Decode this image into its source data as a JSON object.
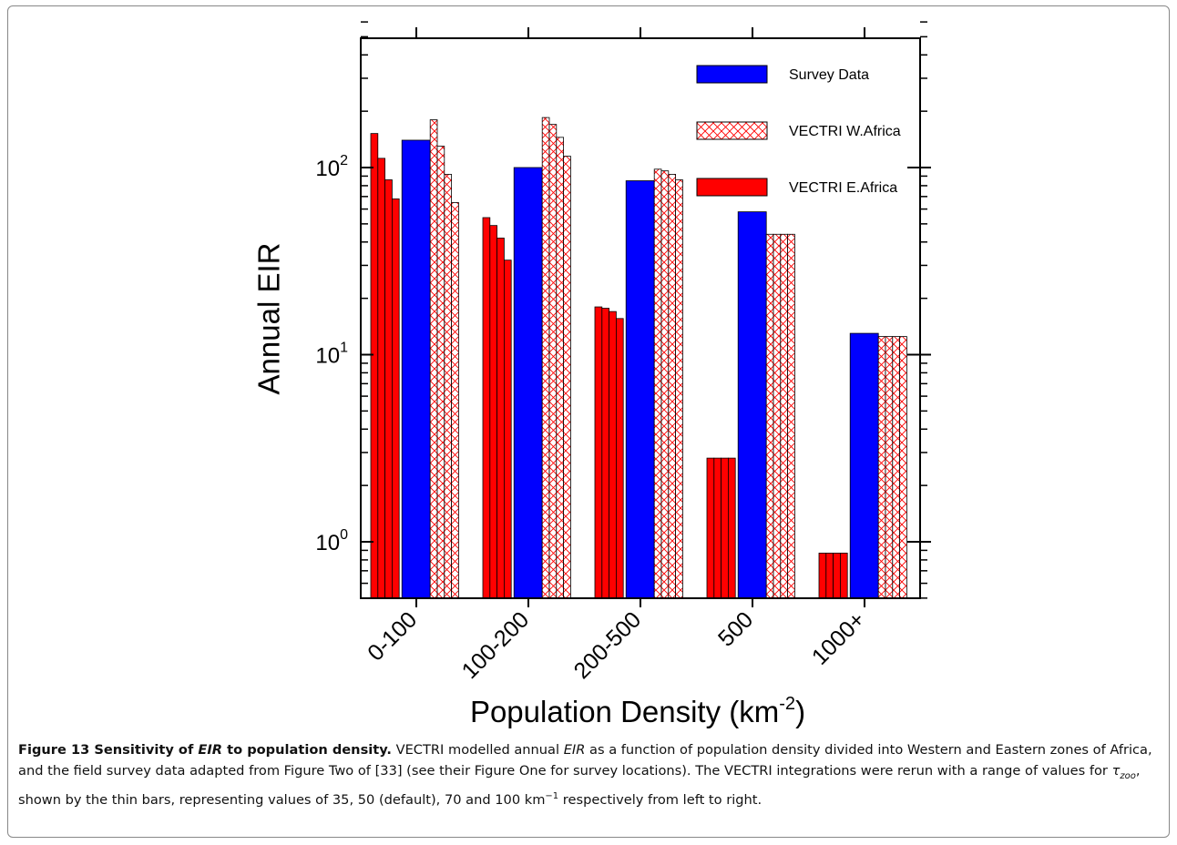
{
  "chart_data": {
    "type": "bar",
    "ylabel": "Annual EIR",
    "xlabel_text": "Population Density (km",
    "xlabel_sup": "-2",
    "xlabel_close": ")",
    "y_scale": "log",
    "ylim": [
      0.5,
      600
    ],
    "y_ticks": [
      {
        "base": "10",
        "exp": "0",
        "value": 1
      },
      {
        "base": "10",
        "exp": "1",
        "value": 10
      },
      {
        "base": "10",
        "exp": "2",
        "value": 100
      }
    ],
    "categories": [
      "0-100",
      "100-200",
      "200-500",
      "500",
      "1000+"
    ],
    "series": [
      {
        "name": "Survey Data",
        "style": "solid-blue",
        "color": "#0000ff",
        "values": [
          140,
          100,
          85,
          58,
          13
        ]
      },
      {
        "name": "VECTRI W.Africa",
        "style": "crosshatch-red",
        "color": "#ff0000",
        "values": [
          [
            180,
            130,
            92,
            65
          ],
          [
            185,
            170,
            145,
            115
          ],
          [
            98,
            96,
            92,
            86
          ],
          [
            44,
            44,
            44,
            44
          ],
          [
            12.5,
            12.5,
            12.5,
            12.5
          ]
        ]
      },
      {
        "name": "VECTRI E.Africa",
        "style": "solid-red",
        "color": "#ff0000",
        "values": [
          [
            152,
            112,
            86,
            68
          ],
          [
            54,
            49,
            42,
            32
          ],
          [
            18,
            17.7,
            17,
            15.6
          ],
          [
            2.8,
            2.8,
            2.8,
            2.8
          ],
          [
            0.87,
            0.87,
            0.87,
            0.87
          ]
        ]
      }
    ],
    "legend_position": "top-right",
    "grid": false
  },
  "caption": {
    "title_a": "Figure 13 Sensitivity of ",
    "title_em": "EIR",
    "title_b": " to population density.",
    "t1": " VECTRI modelled annual ",
    "t1_em": "EIR",
    "t2": " as a function of population density divided into Western and Eastern zones of Africa, and the field survey data adapted from Figure Two of [33] (see their Figure One for survey locations). The VECTRI integrations were rerun with a range of values for ",
    "tau": "τ",
    "tau_sub": "zoo",
    "t3": ", shown by the thin bars, representing values of 35, 50 (default), 70 and 100 km",
    "km_sup": "−1",
    "t4": " respectively from left to right."
  }
}
